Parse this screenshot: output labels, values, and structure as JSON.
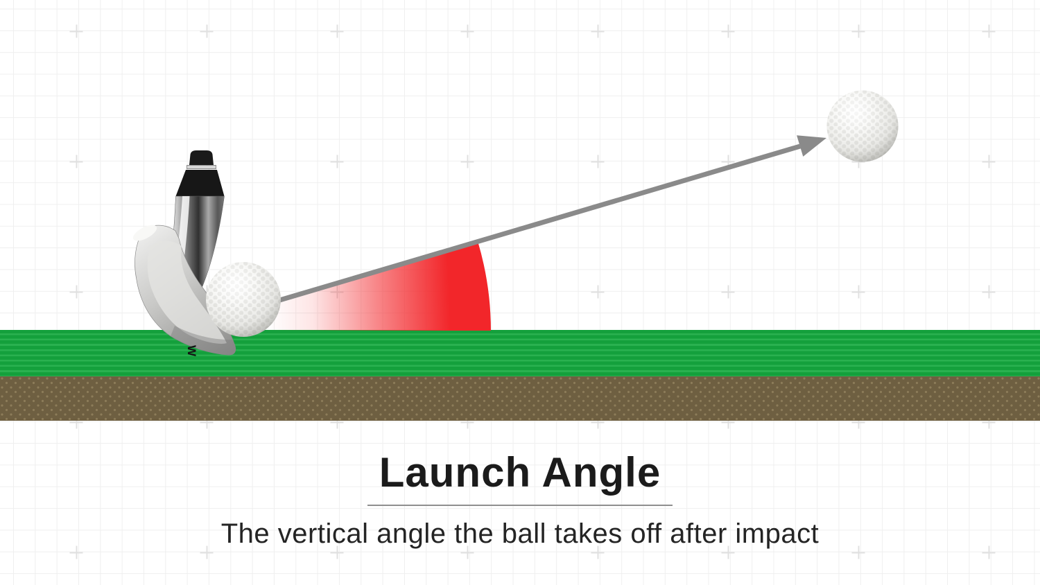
{
  "caption": {
    "title": "Launch Angle",
    "subtitle": "The vertical angle the ball takes off after impact"
  },
  "colors": {
    "grid-line": "#efefef",
    "grid-plus": "#e0e0e0",
    "grass-dark": "#14a03c",
    "grass-light": "#2ab150",
    "dirt": "#6e5f41",
    "dirt-dot": "#8d7d5a",
    "red": "#f2262a",
    "arrow": "#8a8a8a",
    "title-color": "#1b1b1b",
    "subtitle-color": "#242424",
    "divider": "#8f8f8f"
  },
  "diagram": {
    "club": "golf-wedge-club",
    "club_logo": "W",
    "impact_ball": "golf-ball-at-impact",
    "flight_ball": "golf-ball-in-flight",
    "angle_sector": "launch-angle-sector",
    "trajectory_arrow": "ball-trajectory-arrow",
    "grass": "grass-strip",
    "soil": "soil-strip"
  }
}
